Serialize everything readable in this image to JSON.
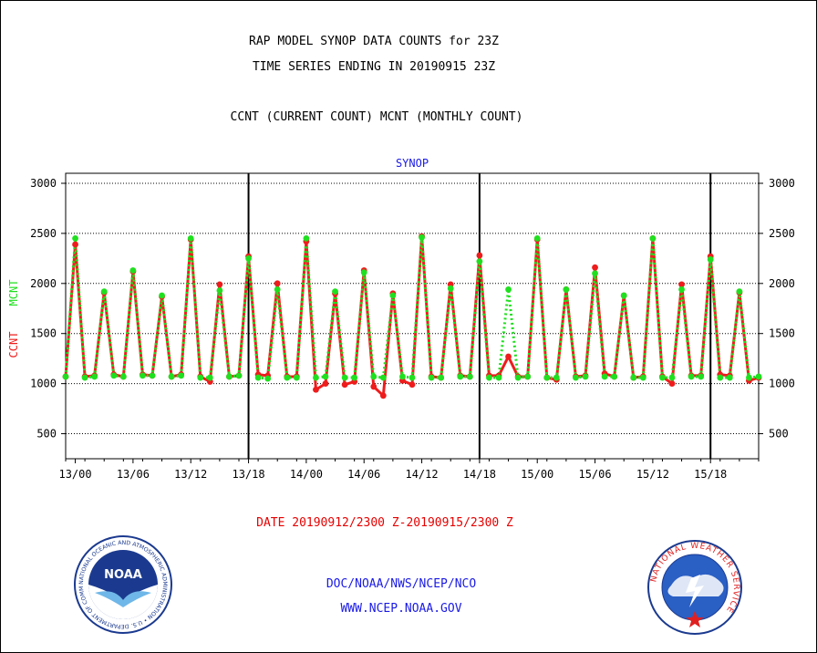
{
  "header": {
    "title": "RAP MODEL SYNOP DATA COUNTS for 23Z",
    "subtitle": "TIME SERIES ENDING IN 20190915 23Z",
    "legend_text": "CCNT (CURRENT COUNT) MCNT (MONTHLY COUNT)"
  },
  "footer": {
    "date_range": "DATE 20190912/2300 Z-20190915/2300 Z",
    "org_path": "DOC/NOAA/NWS/NCEP/NCO",
    "website": "WWW.NCEP.NOAA.GOV"
  },
  "logos": {
    "noaa_text": "NOAA",
    "noaa_ring": "NATIONAL OCEANIC AND ATMOSPHERIC ADMINISTRATION • U.S. DEPARTMENT OF COMMERCE",
    "nws_ring": "NATIONAL WEATHER SERVICE"
  },
  "colors": {
    "ccnt": "#ee1c1c",
    "mcnt": "#1fe01f",
    "title_blue": "#1a1ae6",
    "footer_red": "#e60000"
  },
  "chart_data": {
    "type": "line",
    "title": "SYNOP",
    "ylabel_left": [
      "CCNT",
      "MCNT"
    ],
    "ylim": [
      250,
      3100
    ],
    "yticks": [
      500,
      1000,
      1500,
      2000,
      2500,
      3000
    ],
    "xtick_labels": [
      "13/00",
      "13/06",
      "13/12",
      "13/18",
      "14/00",
      "14/06",
      "14/12",
      "14/18",
      "15/00",
      "15/06",
      "15/12",
      "15/18"
    ],
    "xtick_hours": [
      1,
      7,
      13,
      19,
      25,
      31,
      37,
      43,
      49,
      55,
      61,
      67
    ],
    "xlim_hours": [
      0,
      72
    ],
    "major_vlines_hours": [
      19,
      43,
      67
    ],
    "grid": true,
    "x_units": "hours since 20190912/2300 Z",
    "series": [
      {
        "name": "CCNT",
        "style": "solid",
        "values": [
          1070,
          2390,
          1070,
          1080,
          1910,
          1090,
          1070,
          2120,
          1090,
          1080,
          1870,
          1070,
          1090,
          2440,
          1070,
          1020,
          1990,
          1070,
          1080,
          2270,
          1090,
          1080,
          2000,
          1070,
          1070,
          2420,
          940,
          1000,
          1900,
          990,
          1020,
          2130,
          970,
          880,
          1900,
          1030,
          990,
          2470,
          1070,
          1060,
          1990,
          1080,
          1070,
          2280,
          1080,
          1080,
          1270,
          1070,
          1070,
          2440,
          1060,
          1040,
          1940,
          1070,
          1080,
          2160,
          1100,
          1070,
          1880,
          1060,
          1070,
          2450,
          1070,
          1000,
          1990,
          1080,
          1080,
          2270,
          1090,
          1080,
          1910,
          1030,
          1060
        ]
      },
      {
        "name": "MCNT",
        "style": "dotted",
        "values": [
          1070,
          2450,
          1060,
          1070,
          1920,
          1080,
          1070,
          2130,
          1080,
          1080,
          1880,
          1070,
          1080,
          2450,
          1060,
          1060,
          1930,
          1070,
          1080,
          2250,
          1060,
          1050,
          1940,
          1060,
          1060,
          2450,
          1060,
          1070,
          1920,
          1060,
          1060,
          2110,
          1070,
          1060,
          1880,
          1070,
          1060,
          2460,
          1060,
          1060,
          1950,
          1070,
          1070,
          2220,
          1060,
          1060,
          1940,
          1060,
          1070,
          2450,
          1060,
          1060,
          1940,
          1060,
          1070,
          2100,
          1070,
          1070,
          1880,
          1060,
          1060,
          2450,
          1060,
          1060,
          1940,
          1070,
          1070,
          2240,
          1060,
          1060,
          1920,
          1060,
          1070
        ]
      }
    ]
  }
}
